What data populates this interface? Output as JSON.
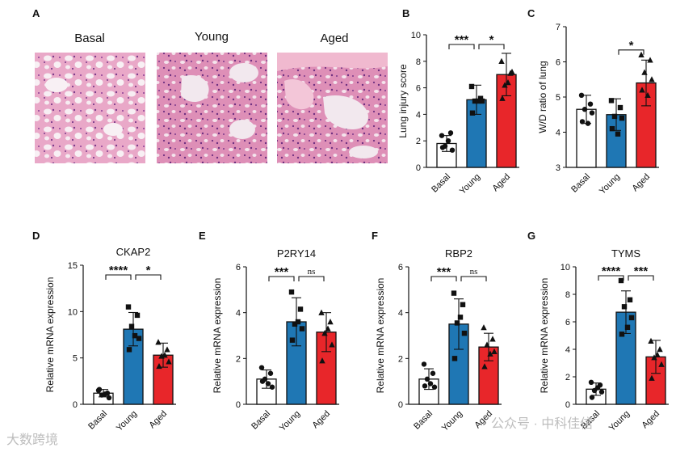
{
  "panel_a": {
    "letter": "A",
    "images": [
      {
        "label": "Basal"
      },
      {
        "label": "Young"
      },
      {
        "label": "Aged"
      }
    ]
  },
  "colors": {
    "basal": "#ffffff",
    "young": "#1f77b4",
    "aged": "#e8262a",
    "stroke": "#111111"
  },
  "chart_data": [
    {
      "letter": "B",
      "type": "bar",
      "title": "",
      "ylabel": "Lung injury score",
      "ylim": [
        0,
        10
      ],
      "yticks": [
        0,
        2,
        4,
        6,
        8,
        10
      ],
      "categories": [
        "Basal",
        "Young",
        "Aged"
      ],
      "values": [
        1.8,
        5.1,
        7.0
      ],
      "errors": [
        0.6,
        1.1,
        1.6
      ],
      "points": [
        [
          2.4,
          2.6,
          1.6,
          1.3,
          1.5,
          2.0
        ],
        [
          6.1,
          5.2,
          5.0,
          5.0,
          4.1,
          5.0
        ],
        [
          8.0,
          7.1,
          6.2,
          7.2,
          5.2,
          6.4
        ]
      ],
      "markers": [
        "circle",
        "square",
        "triangle"
      ],
      "comparisons": [
        {
          "from": 0,
          "to": 1,
          "label": "***"
        },
        {
          "from": 1,
          "to": 2,
          "label": "*"
        }
      ]
    },
    {
      "letter": "C",
      "type": "bar",
      "title": "",
      "ylabel": "W/D ratio of lung",
      "ylim": [
        3,
        7
      ],
      "yticks": [
        3,
        4,
        5,
        6,
        7
      ],
      "categories": [
        "Basal",
        "Young",
        "Aged"
      ],
      "values": [
        4.65,
        4.5,
        5.4
      ],
      "errors": [
        0.4,
        0.45,
        0.65
      ],
      "points": [
        [
          5.05,
          4.8,
          4.65,
          4.55,
          4.3,
          4.25
        ],
        [
          4.9,
          4.7,
          4.45,
          4.4,
          4.1,
          3.95
        ],
        [
          6.2,
          6.05,
          5.7,
          5.5,
          5.2,
          5.05
        ]
      ],
      "markers": [
        "circle",
        "square",
        "triangle"
      ],
      "comparisons": [
        {
          "from": 1,
          "to": 2,
          "label": "*"
        }
      ]
    },
    {
      "letter": "D",
      "type": "bar",
      "title": "CKAP2",
      "ylabel": "Relative mRNA expression",
      "ylim": [
        0,
        15
      ],
      "yticks": [
        0,
        5,
        10,
        15
      ],
      "categories": [
        "Basal",
        "Young",
        "Aged"
      ],
      "values": [
        1.2,
        8.1,
        5.3
      ],
      "errors": [
        0.4,
        1.8,
        1.3
      ],
      "points": [
        [
          1.5,
          1.2,
          1.0,
          0.7,
          1.6,
          1.1
        ],
        [
          10.5,
          9.6,
          8.4,
          7.1,
          5.9,
          7.4
        ],
        [
          6.7,
          5.9,
          5.2,
          4.6,
          4.1,
          5.3
        ]
      ],
      "markers": [
        "circle",
        "square",
        "triangle"
      ],
      "comparisons": [
        {
          "from": 0,
          "to": 1,
          "label": "****"
        },
        {
          "from": 1,
          "to": 2,
          "label": "*"
        }
      ]
    },
    {
      "letter": "E",
      "type": "bar",
      "title": "P2RY14",
      "ylabel": "Relative mRNA expression",
      "ylim": [
        0,
        6
      ],
      "yticks": [
        0,
        2,
        4,
        6
      ],
      "categories": [
        "Basal",
        "Young",
        "Aged"
      ],
      "values": [
        1.1,
        3.6,
        3.15
      ],
      "errors": [
        0.4,
        1.05,
        0.85
      ],
      "points": [
        [
          1.6,
          1.35,
          1.1,
          0.75,
          1.0,
          0.9
        ],
        [
          4.9,
          4.15,
          3.5,
          3.3,
          2.8,
          3.6
        ],
        [
          4.0,
          3.6,
          3.1,
          2.6,
          1.9,
          3.3
        ]
      ],
      "markers": [
        "circle",
        "square",
        "triangle"
      ],
      "comparisons": [
        {
          "from": 0,
          "to": 1,
          "label": "***"
        },
        {
          "from": 1,
          "to": 2,
          "label": "ns"
        }
      ]
    },
    {
      "letter": "F",
      "type": "bar",
      "title": "RBP2",
      "ylabel": "Relative mRNA expression",
      "ylim": [
        0,
        6
      ],
      "yticks": [
        0,
        2,
        4,
        6
      ],
      "categories": [
        "Basal",
        "Young",
        "Aged"
      ],
      "values": [
        1.1,
        3.5,
        2.5
      ],
      "errors": [
        0.45,
        1.1,
        0.6
      ],
      "points": [
        [
          1.75,
          1.35,
          1.1,
          0.75,
          0.8,
          0.9
        ],
        [
          4.85,
          4.35,
          3.55,
          3.1,
          2.0,
          3.8
        ],
        [
          3.35,
          2.85,
          2.6,
          2.3,
          1.65,
          2.2
        ]
      ],
      "markers": [
        "circle",
        "square",
        "triangle"
      ],
      "comparisons": [
        {
          "from": 0,
          "to": 1,
          "label": "***"
        },
        {
          "from": 1,
          "to": 2,
          "label": "ns"
        }
      ]
    },
    {
      "letter": "G",
      "type": "bar",
      "title": "TYMS",
      "ylabel": "Relative mRNA expression",
      "ylim": [
        0,
        10
      ],
      "yticks": [
        0,
        2,
        4,
        6,
        8,
        10
      ],
      "categories": [
        "Basal",
        "Young",
        "Aged"
      ],
      "values": [
        1.1,
        6.7,
        3.45
      ],
      "errors": [
        0.45,
        1.55,
        1.2
      ],
      "points": [
        [
          1.6,
          1.4,
          1.0,
          0.9,
          0.5,
          1.2
        ],
        [
          9.0,
          7.6,
          7.1,
          6.3,
          5.1,
          5.6
        ],
        [
          4.6,
          4.0,
          3.4,
          2.9,
          1.9,
          3.6
        ]
      ],
      "markers": [
        "circle",
        "square",
        "triangle"
      ],
      "comparisons": [
        {
          "from": 0,
          "to": 1,
          "label": "****"
        },
        {
          "from": 1,
          "to": 2,
          "label": "***"
        }
      ]
    }
  ],
  "watermarks": {
    "left": "大数跨境",
    "right": "公众号 · 中科佳信"
  }
}
